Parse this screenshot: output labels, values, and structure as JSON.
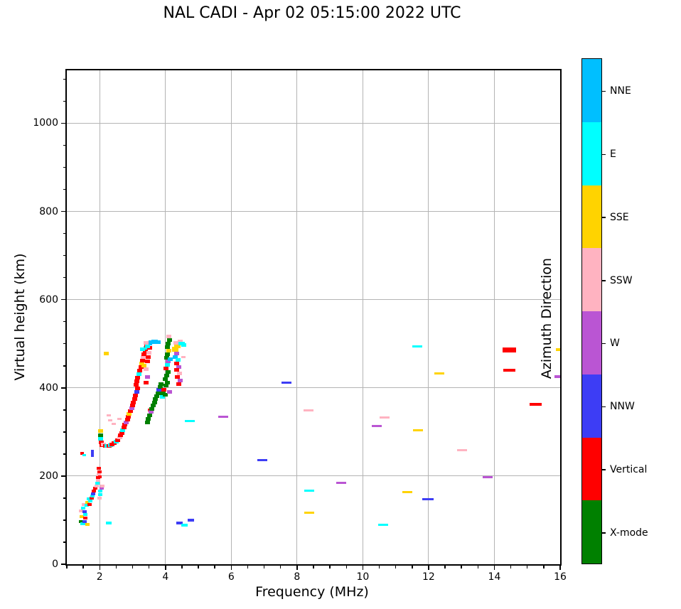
{
  "title": "NAL CADI - Apr 02 05:15:00 2022 UTC",
  "chart_data": {
    "type": "scatter",
    "title": "NAL CADI - Apr 02 05:15:00 2022 UTC",
    "xlabel": "Frequency (MHz)",
    "ylabel": "Virtual height (km)",
    "xlim": [
      1,
      16
    ],
    "ylim": [
      0,
      1120
    ],
    "x_ticks": [
      2,
      4,
      6,
      8,
      10,
      12,
      14,
      16
    ],
    "x_minor_step": 0.5,
    "y_ticks": [
      0,
      200,
      400,
      600,
      800,
      1000
    ],
    "y_minor_step": 50,
    "grid": true,
    "grid_color": "#b4b4b4",
    "colorbar": {
      "label": "Azimuth Direction",
      "categories_top_to_bottom": [
        {
          "key": "NNE",
          "label": "NNE",
          "color": "#00BFFF"
        },
        {
          "key": "E",
          "label": "E",
          "color": "#00FFFF"
        },
        {
          "key": "SSE",
          "label": "SSE",
          "color": "#FFD300"
        },
        {
          "key": "SSW",
          "label": "SSW",
          "color": "#FFB3C1"
        },
        {
          "key": "W",
          "label": "W",
          "color": "#BA55D3"
        },
        {
          "key": "NNW",
          "label": "NNW",
          "color": "#3D3DF5"
        },
        {
          "key": "V",
          "label": "Vertical",
          "color": "#FF0000"
        },
        {
          "key": "X",
          "label": "X-mode",
          "color": "#008000"
        }
      ]
    },
    "points_format": "[freq_MHz, height_km, direction_key, width_px(optional,default 7), thickness_px(optional,default 5)]",
    "points": [
      [
        1.43,
        121,
        "SSW",
        6,
        4
      ],
      [
        1.43,
        97,
        "X",
        6,
        4
      ],
      [
        1.45,
        108,
        "SSE",
        6,
        4
      ],
      [
        1.47,
        92,
        "E",
        6,
        4
      ],
      [
        1.5,
        128,
        "E",
        6,
        4
      ],
      [
        1.5,
        92,
        "E",
        6,
        4
      ],
      [
        1.52,
        135,
        "SSW",
        6,
        4
      ],
      [
        1.55,
        97,
        "NNW",
        6,
        4
      ],
      [
        1.55,
        119,
        "NNW",
        6,
        4
      ],
      [
        1.57,
        113,
        "E",
        6,
        4
      ],
      [
        1.57,
        104,
        "V",
        6,
        4
      ],
      [
        1.6,
        133,
        "E",
        6,
        4
      ],
      [
        1.62,
        90,
        "SSE",
        6,
        4
      ],
      [
        1.63,
        141,
        "SSE",
        6,
        4
      ],
      [
        1.67,
        148,
        "E",
        6,
        4
      ],
      [
        1.7,
        136,
        "V",
        6,
        4
      ],
      [
        1.72,
        143,
        "E",
        6,
        4
      ],
      [
        1.75,
        150,
        "V",
        6,
        4
      ],
      [
        1.78,
        155,
        "E",
        6,
        4
      ],
      [
        1.8,
        160,
        "NNW",
        6,
        4
      ],
      [
        1.83,
        166,
        "V",
        6,
        4
      ],
      [
        1.86,
        172,
        "V",
        6,
        4
      ],
      [
        1.9,
        178,
        "SSW",
        6,
        4
      ],
      [
        1.92,
        184,
        "E",
        6,
        4
      ],
      [
        1.95,
        190,
        "SSW",
        6,
        4
      ],
      [
        1.95,
        197,
        "V",
        6,
        4
      ],
      [
        1.98,
        203,
        "SSW",
        6,
        4
      ],
      [
        2.0,
        210,
        "V",
        6,
        4
      ],
      [
        1.98,
        218,
        "V",
        6,
        4
      ],
      [
        2.0,
        150,
        "SSW",
        6,
        4
      ],
      [
        2.02,
        158,
        "E",
        6,
        4
      ],
      [
        2.02,
        166,
        "E",
        6,
        4
      ],
      [
        2.05,
        172,
        "W",
        6,
        4
      ],
      [
        2.08,
        178,
        "SSW",
        6,
        4
      ],
      [
        2.28,
        93,
        "E",
        8,
        4
      ],
      [
        1.47,
        251,
        "V",
        5,
        4
      ],
      [
        1.52,
        247,
        "E",
        5,
        3
      ],
      [
        1.77,
        252,
        "NNW",
        4,
        10
      ],
      [
        2.0,
        198,
        "V",
        5,
        4
      ],
      [
        2.2,
        478,
        "SSE",
        7,
        5
      ],
      [
        2.02,
        302,
        "SSE"
      ],
      [
        2.02,
        293,
        "X"
      ],
      [
        2.03,
        285,
        "E"
      ],
      [
        2.05,
        277,
        "V"
      ],
      [
        2.07,
        270,
        "V"
      ],
      [
        2.12,
        271,
        "SSW"
      ],
      [
        2.17,
        268,
        "V"
      ],
      [
        2.22,
        269,
        "E"
      ],
      [
        2.28,
        268,
        "V"
      ],
      [
        2.33,
        270,
        "E"
      ],
      [
        2.38,
        272,
        "V"
      ],
      [
        2.44,
        275,
        "V"
      ],
      [
        2.5,
        278,
        "E"
      ],
      [
        2.55,
        282,
        "V"
      ],
      [
        2.6,
        287,
        "SSW"
      ],
      [
        2.63,
        292,
        "V"
      ],
      [
        2.67,
        298,
        "V"
      ],
      [
        2.7,
        304,
        "E"
      ],
      [
        2.74,
        310,
        "V"
      ],
      [
        2.77,
        316,
        "V"
      ],
      [
        2.8,
        322,
        "W"
      ],
      [
        2.84,
        328,
        "V"
      ],
      [
        2.87,
        334,
        "V"
      ],
      [
        2.9,
        341,
        "SSE"
      ],
      [
        2.94,
        347,
        "V"
      ],
      [
        2.97,
        354,
        "W"
      ],
      [
        3.0,
        360,
        "V"
      ],
      [
        3.03,
        367,
        "V"
      ],
      [
        2.32,
        326,
        "SSW",
        6,
        3
      ],
      [
        2.42,
        318,
        "SSW",
        6,
        3
      ],
      [
        2.28,
        338,
        "SSW",
        6,
        3
      ],
      [
        2.6,
        330,
        "SSW",
        6,
        3
      ],
      [
        3.06,
        375,
        "V"
      ],
      [
        3.09,
        383,
        "V"
      ],
      [
        3.12,
        391,
        "NNW"
      ],
      [
        3.14,
        399,
        "V"
      ],
      [
        3.1,
        407,
        "V"
      ],
      [
        3.13,
        415,
        "V"
      ],
      [
        3.16,
        423,
        "V"
      ],
      [
        3.2,
        431,
        "E"
      ],
      [
        3.22,
        439,
        "V"
      ],
      [
        3.25,
        447,
        "V"
      ],
      [
        3.28,
        455,
        "SSE"
      ],
      [
        3.3,
        462,
        "V"
      ],
      [
        3.33,
        469,
        "SSW"
      ],
      [
        3.35,
        476,
        "V"
      ],
      [
        3.38,
        483,
        "V"
      ],
      [
        3.4,
        490,
        "E"
      ],
      [
        3.43,
        496,
        "V"
      ],
      [
        3.3,
        487,
        "E"
      ],
      [
        3.35,
        450,
        "SSE"
      ],
      [
        3.42,
        443,
        "SSW"
      ],
      [
        3.45,
        425,
        "W"
      ],
      [
        3.4,
        412,
        "V"
      ],
      [
        3.45,
        460,
        "V"
      ],
      [
        3.48,
        470,
        "V"
      ],
      [
        3.5,
        480,
        "SSW"
      ],
      [
        3.52,
        490,
        "V"
      ],
      [
        3.52,
        350,
        "V",
        5,
        4
      ],
      [
        3.5,
        500,
        "NNE",
        9,
        5
      ],
      [
        3.58,
        504,
        "NNE",
        9,
        5
      ],
      [
        3.67,
        506,
        "NNE",
        9,
        5
      ],
      [
        3.75,
        503,
        "NNE",
        9,
        5
      ],
      [
        3.45,
        494,
        "E"
      ],
      [
        3.4,
        502,
        "SSW"
      ],
      [
        3.45,
        322,
        "X"
      ],
      [
        3.48,
        330,
        "X"
      ],
      [
        3.52,
        338,
        "X"
      ],
      [
        3.56,
        345,
        "W"
      ],
      [
        3.58,
        352,
        "X"
      ],
      [
        3.62,
        360,
        "X"
      ],
      [
        3.66,
        367,
        "X"
      ],
      [
        3.7,
        374,
        "X"
      ],
      [
        3.73,
        381,
        "X"
      ],
      [
        3.77,
        388,
        "X"
      ],
      [
        3.8,
        395,
        "NNW"
      ],
      [
        3.84,
        402,
        "X"
      ],
      [
        3.87,
        409,
        "X"
      ],
      [
        3.9,
        380,
        "E"
      ],
      [
        3.93,
        388,
        "X"
      ],
      [
        3.96,
        395,
        "V"
      ],
      [
        4.02,
        405,
        "X"
      ],
      [
        4.05,
        412,
        "X"
      ],
      [
        4.0,
        420,
        "X"
      ],
      [
        4.04,
        428,
        "X"
      ],
      [
        4.07,
        436,
        "X"
      ],
      [
        4.02,
        444,
        "V"
      ],
      [
        4.05,
        452,
        "E"
      ],
      [
        4.08,
        460,
        "W"
      ],
      [
        4.03,
        468,
        "X"
      ],
      [
        4.06,
        476,
        "X"
      ],
      [
        4.1,
        484,
        "SSE"
      ],
      [
        4.05,
        492,
        "X"
      ],
      [
        4.08,
        500,
        "X"
      ],
      [
        4.12,
        508,
        "X"
      ],
      [
        4.1,
        516,
        "SSW"
      ],
      [
        4.0,
        385,
        "X"
      ],
      [
        4.12,
        390,
        "W"
      ],
      [
        4.15,
        465,
        "NNE"
      ],
      [
        4.3,
        488,
        "SSE",
        9,
        7
      ],
      [
        4.37,
        496,
        "SSE",
        9,
        7
      ],
      [
        4.44,
        500,
        "SSE"
      ],
      [
        4.32,
        502,
        "SSW"
      ],
      [
        4.45,
        505,
        "SSW"
      ],
      [
        4.5,
        501,
        "E",
        9,
        5
      ],
      [
        4.56,
        497,
        "E"
      ],
      [
        4.35,
        478,
        "W"
      ],
      [
        4.3,
        470,
        "NNE"
      ],
      [
        4.38,
        463,
        "E"
      ],
      [
        4.33,
        455,
        "V"
      ],
      [
        4.4,
        447,
        "W"
      ],
      [
        4.35,
        440,
        "V"
      ],
      [
        4.42,
        432,
        "SSW"
      ],
      [
        4.37,
        424,
        "V"
      ],
      [
        4.44,
        416,
        "W"
      ],
      [
        4.4,
        408,
        "V"
      ],
      [
        4.55,
        470,
        "SSW",
        6,
        3
      ],
      [
        4.42,
        94,
        "NNW",
        9,
        4
      ],
      [
        4.57,
        88,
        "E",
        9,
        4
      ],
      [
        4.77,
        100,
        "NNW",
        9,
        4
      ],
      [
        4.73,
        324,
        "E",
        14,
        3
      ],
      [
        5.76,
        335,
        "W",
        14,
        3
      ],
      [
        6.95,
        236,
        "NNW",
        14,
        3
      ],
      [
        7.68,
        411,
        "NNW",
        14,
        3
      ],
      [
        8.35,
        349,
        "SSW",
        14,
        3
      ],
      [
        8.38,
        166,
        "E",
        14,
        3
      ],
      [
        8.37,
        117,
        "SSE",
        14,
        3
      ],
      [
        9.35,
        184,
        "W",
        14,
        3
      ],
      [
        10.42,
        313,
        "W",
        14,
        3
      ],
      [
        10.66,
        332,
        "SSW",
        14,
        3
      ],
      [
        10.62,
        89,
        "E",
        14,
        3
      ],
      [
        11.35,
        163,
        "SSE",
        14,
        3
      ],
      [
        11.65,
        494,
        "E",
        14,
        3
      ],
      [
        11.68,
        303,
        "SSE",
        14,
        3
      ],
      [
        11.98,
        148,
        "NNW",
        16,
        3
      ],
      [
        12.32,
        432,
        "SSE",
        14,
        3
      ],
      [
        13.02,
        258,
        "SSW",
        14,
        3
      ],
      [
        13.8,
        197,
        "W",
        14,
        3
      ],
      [
        14.45,
        486,
        "V",
        19,
        7
      ],
      [
        14.45,
        440,
        "V",
        17,
        4
      ],
      [
        15.25,
        363,
        "V",
        17,
        4
      ],
      [
        15.95,
        487,
        "SSE",
        8,
        4
      ],
      [
        15.92,
        425,
        "W",
        8,
        4
      ]
    ]
  }
}
